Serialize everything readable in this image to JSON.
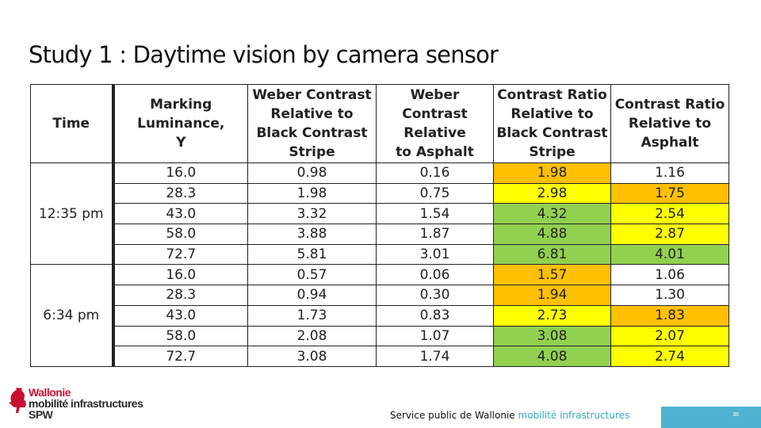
{
  "title": "Study 1 : Daytime vision by camera sensor",
  "colors": {
    "orange": "#ffc000",
    "yellow": "#ffff00",
    "green": "#92d050",
    "white": "#ffffff",
    "brand_red": "#c8102e",
    "accent_blue": "#4fb3cf"
  },
  "table": {
    "headers": [
      "Time",
      "Marking Luminance, Y",
      "Weber Contrast Relative to Black Contrast Stripe",
      "Weber Contrast Relative to Asphalt",
      "Contrast Ratio Relative to Black Contrast Stripe",
      "Contrast Ratio Relative to Asphalt"
    ],
    "groups": [
      {
        "time": "12:35 pm",
        "rows": [
          {
            "luminance": "16.0",
            "weber_black": "0.98",
            "weber_asphalt": "0.16",
            "ratio_black": "1.98",
            "ratio_asphalt": "1.16",
            "ratio_black_color": "orange",
            "ratio_asphalt_color": "white"
          },
          {
            "luminance": "28.3",
            "weber_black": "1.98",
            "weber_asphalt": "0.75",
            "ratio_black": "2.98",
            "ratio_asphalt": "1.75",
            "ratio_black_color": "yellow",
            "ratio_asphalt_color": "orange"
          },
          {
            "luminance": "43.0",
            "weber_black": "3.32",
            "weber_asphalt": "1.54",
            "ratio_black": "4.32",
            "ratio_asphalt": "2.54",
            "ratio_black_color": "green",
            "ratio_asphalt_color": "yellow"
          },
          {
            "luminance": "58.0",
            "weber_black": "3.88",
            "weber_asphalt": "1.87",
            "ratio_black": "4.88",
            "ratio_asphalt": "2.87",
            "ratio_black_color": "green",
            "ratio_asphalt_color": "yellow"
          },
          {
            "luminance": "72.7",
            "weber_black": "5.81",
            "weber_asphalt": "3.01",
            "ratio_black": "6.81",
            "ratio_asphalt": "4.01",
            "ratio_black_color": "green",
            "ratio_asphalt_color": "green"
          }
        ]
      },
      {
        "time": "6:34 pm",
        "rows": [
          {
            "luminance": "16.0",
            "weber_black": "0.57",
            "weber_asphalt": "0.06",
            "ratio_black": "1.57",
            "ratio_asphalt": "1.06",
            "ratio_black_color": "orange",
            "ratio_asphalt_color": "white"
          },
          {
            "luminance": "28.3",
            "weber_black": "0.94",
            "weber_asphalt": "0.30",
            "ratio_black": "1.94",
            "ratio_asphalt": "1.30",
            "ratio_black_color": "orange",
            "ratio_asphalt_color": "white"
          },
          {
            "luminance": "43.0",
            "weber_black": "1.73",
            "weber_asphalt": "0.83",
            "ratio_black": "2.73",
            "ratio_asphalt": "1.83",
            "ratio_black_color": "yellow",
            "ratio_asphalt_color": "orange"
          },
          {
            "luminance": "58.0",
            "weber_black": "2.08",
            "weber_asphalt": "1.07",
            "ratio_black": "3.08",
            "ratio_asphalt": "2.07",
            "ratio_black_color": "green",
            "ratio_asphalt_color": "yellow"
          },
          {
            "luminance": "72.7",
            "weber_black": "3.08",
            "weber_asphalt": "1.74",
            "ratio_black": "4.08",
            "ratio_asphalt": "2.74",
            "ratio_black_color": "green",
            "ratio_asphalt_color": "yellow"
          }
        ]
      }
    ]
  },
  "logo": {
    "icon": "rooster-icon",
    "line1": "Wallonie",
    "line2": "mobilité infrastructures",
    "line3": "SPW"
  },
  "footer": {
    "text_main": "Service public de Wallonie",
    "text_accent": "mobilité infrastructures"
  },
  "page_number": "36"
}
